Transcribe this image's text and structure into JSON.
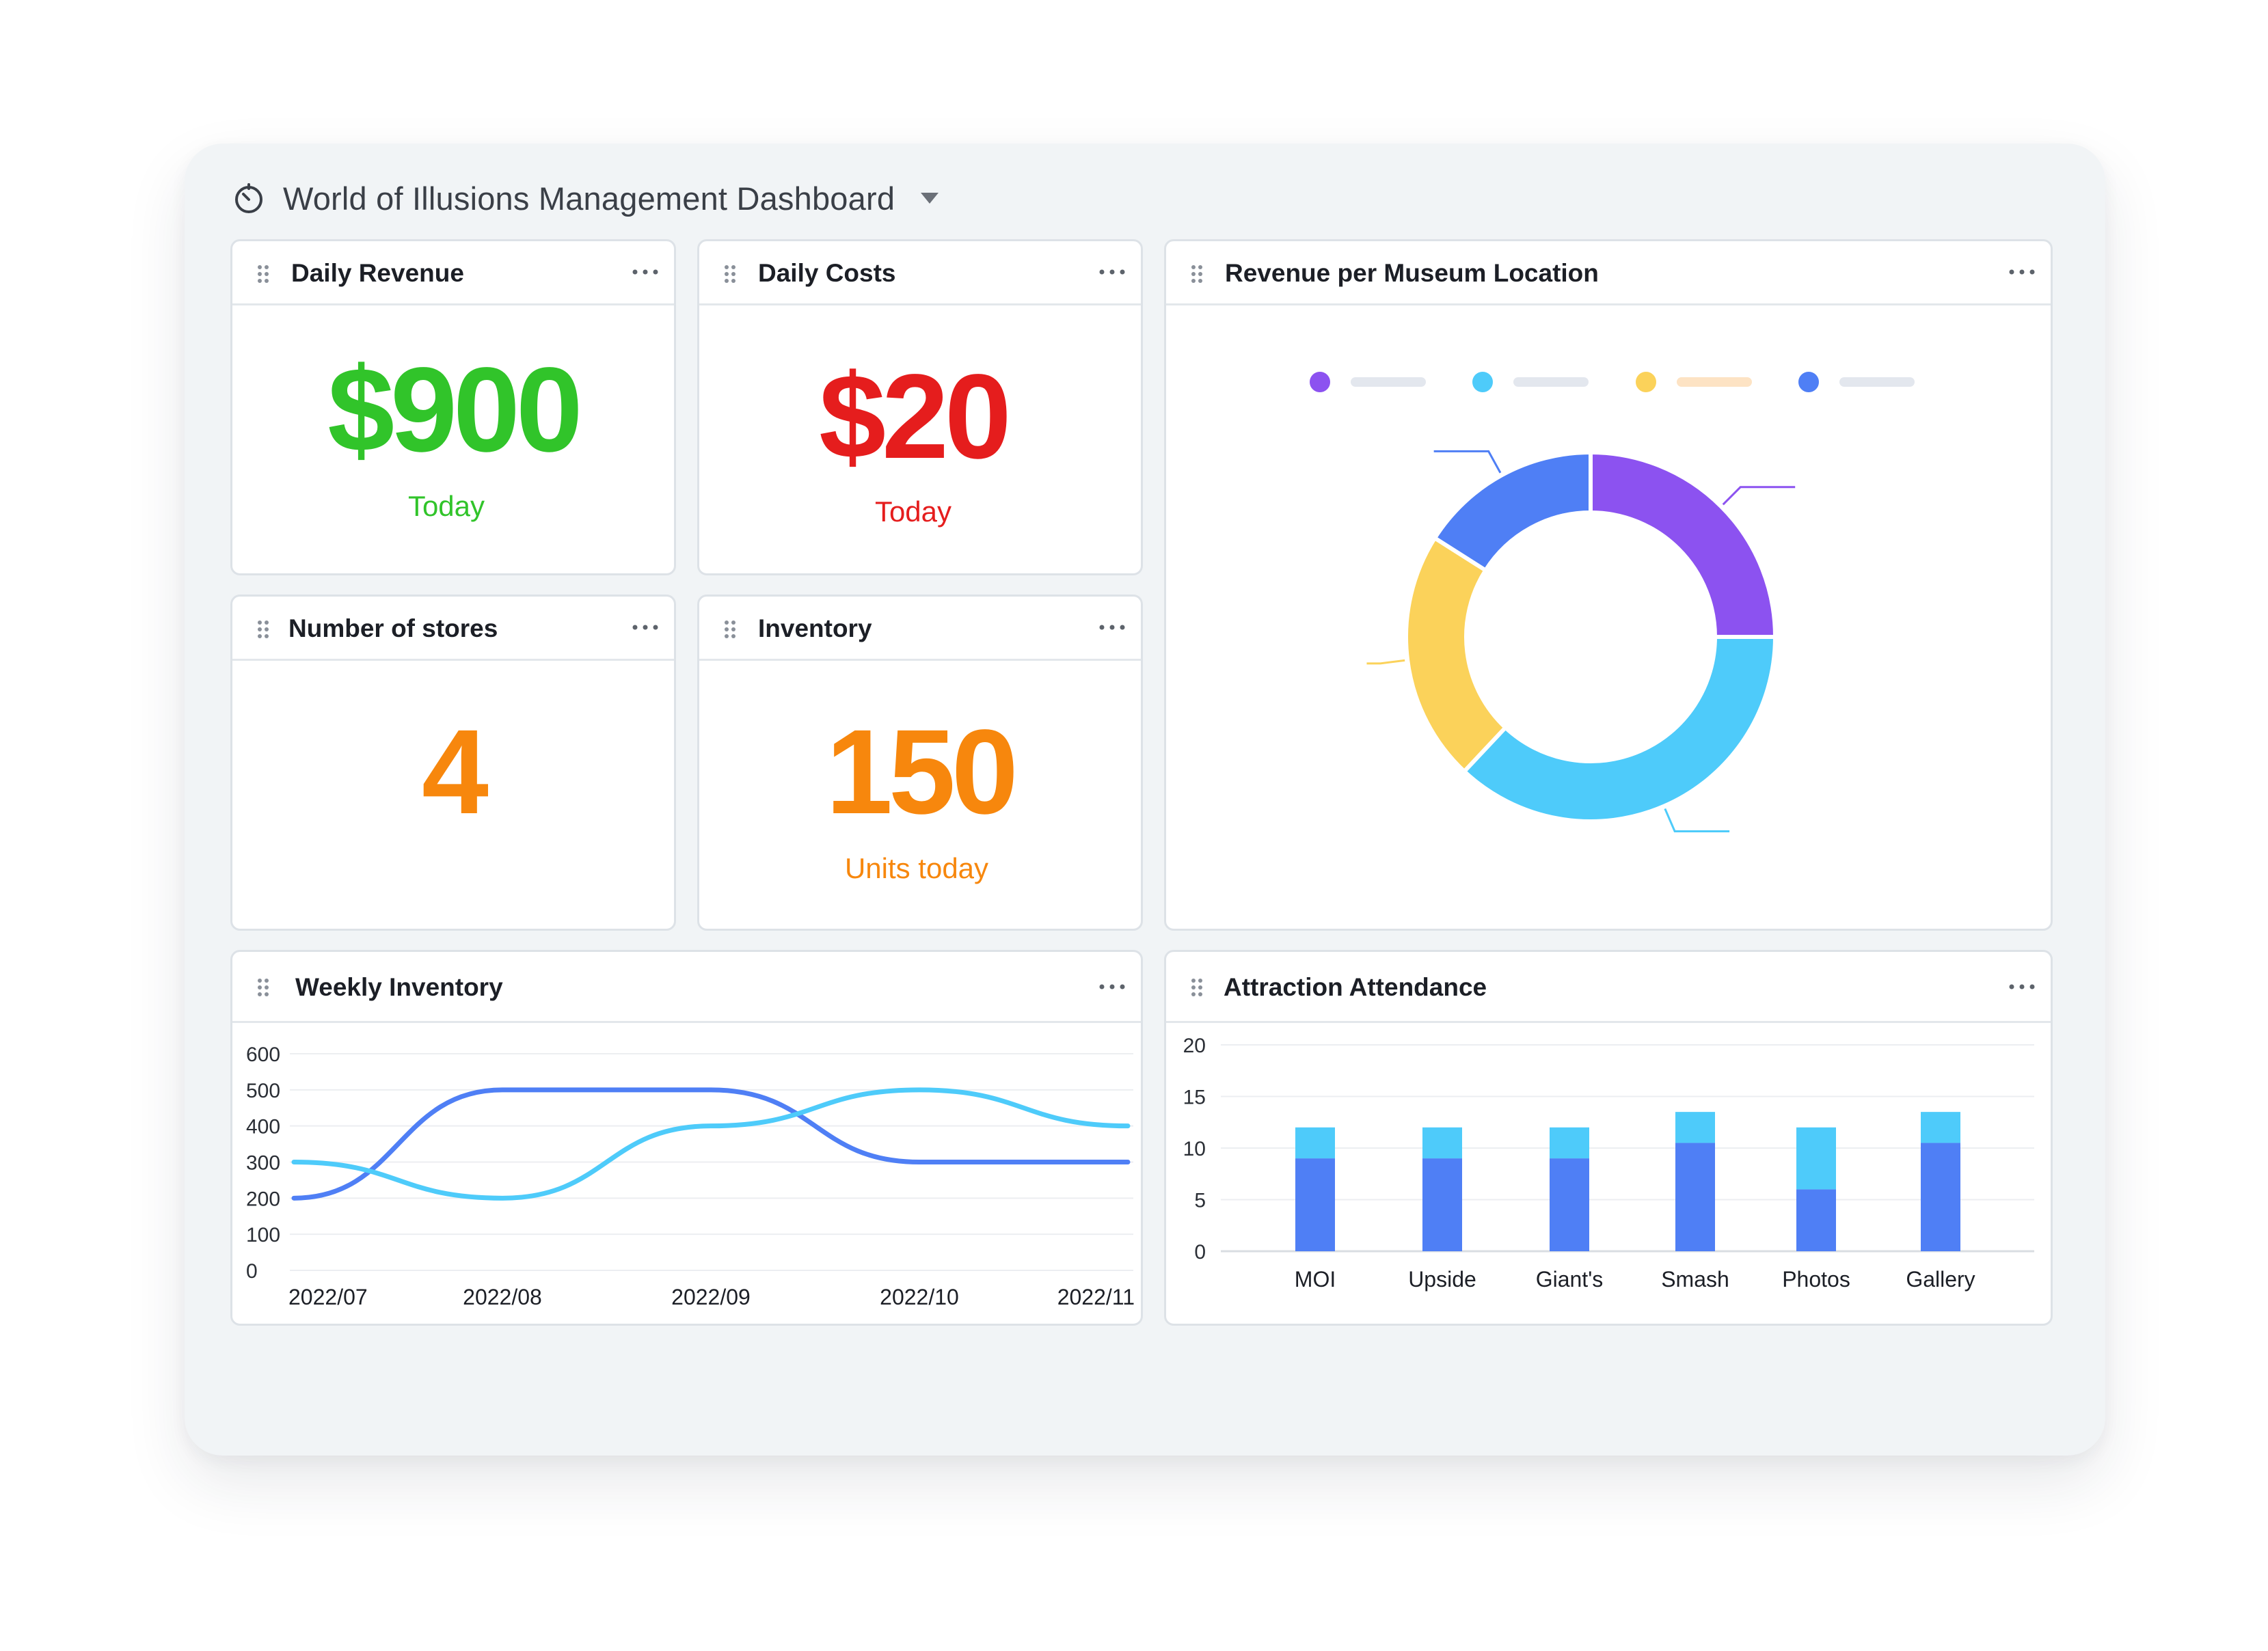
{
  "dashboard": {
    "title": "World of Illusions Management Dashboard"
  },
  "cards": {
    "daily_revenue": {
      "title": "Daily Revenue",
      "value": "$900",
      "subtitle": "Today",
      "color": "#31c42a"
    },
    "daily_costs": {
      "title": "Daily Costs",
      "value": "$20",
      "subtitle": "Today",
      "color": "#e51d1d"
    },
    "stores": {
      "title": "Number of stores",
      "value": "4",
      "color": "#f7870d"
    },
    "inventory": {
      "title": "Inventory",
      "value": "150",
      "subtitle": "Units today",
      "color": "#f7870d"
    },
    "revenue_location": {
      "title": "Revenue per Museum Location"
    },
    "weekly_inventory": {
      "title": "Weekly Inventory"
    },
    "attendance": {
      "title": "Attraction Attendance"
    }
  },
  "chart_data": [
    {
      "type": "pie",
      "variant": "donut",
      "slices": [
        {
          "value": 25,
          "color": "#8c52f0"
        },
        {
          "value": 37,
          "color": "#4ecbfa"
        },
        {
          "value": 22,
          "color": "#fbd25a"
        },
        {
          "value": 16,
          "color": "#4f7ff5"
        }
      ],
      "legend_colors": [
        "#8c52f0",
        "#4ecbfa",
        "#fbd25a",
        "#4f7ff5"
      ],
      "legend_placement": "top"
    },
    {
      "type": "line",
      "categories": [
        "2022/07",
        "2022/08",
        "2022/09",
        "2022/10",
        "2022/11"
      ],
      "series": [
        {
          "color": "#4f7ff5",
          "values": [
            200,
            500,
            500,
            300,
            300
          ]
        },
        {
          "color": "#4ecbfa",
          "values": [
            300,
            200,
            400,
            500,
            400
          ]
        }
      ],
      "ylim": [
        0,
        600
      ],
      "yticks": [
        "0",
        "100",
        "200",
        "300",
        "400",
        "500",
        "600"
      ],
      "grid": true
    },
    {
      "type": "bar",
      "stacked": true,
      "categories": [
        "MOI",
        "Upside",
        "Giant's",
        "Smash",
        "Photos",
        "Gallery"
      ],
      "series": [
        {
          "color": "#4f7ff5",
          "values": [
            9,
            9,
            9,
            10.5,
            6,
            10.5
          ]
        },
        {
          "color": "#4ecbfa",
          "values": [
            3,
            3,
            3,
            3,
            6,
            3
          ]
        }
      ],
      "ylim": [
        0,
        20
      ],
      "yticks": [
        "0",
        "5",
        "10",
        "15",
        "20"
      ],
      "grid": true
    }
  ]
}
